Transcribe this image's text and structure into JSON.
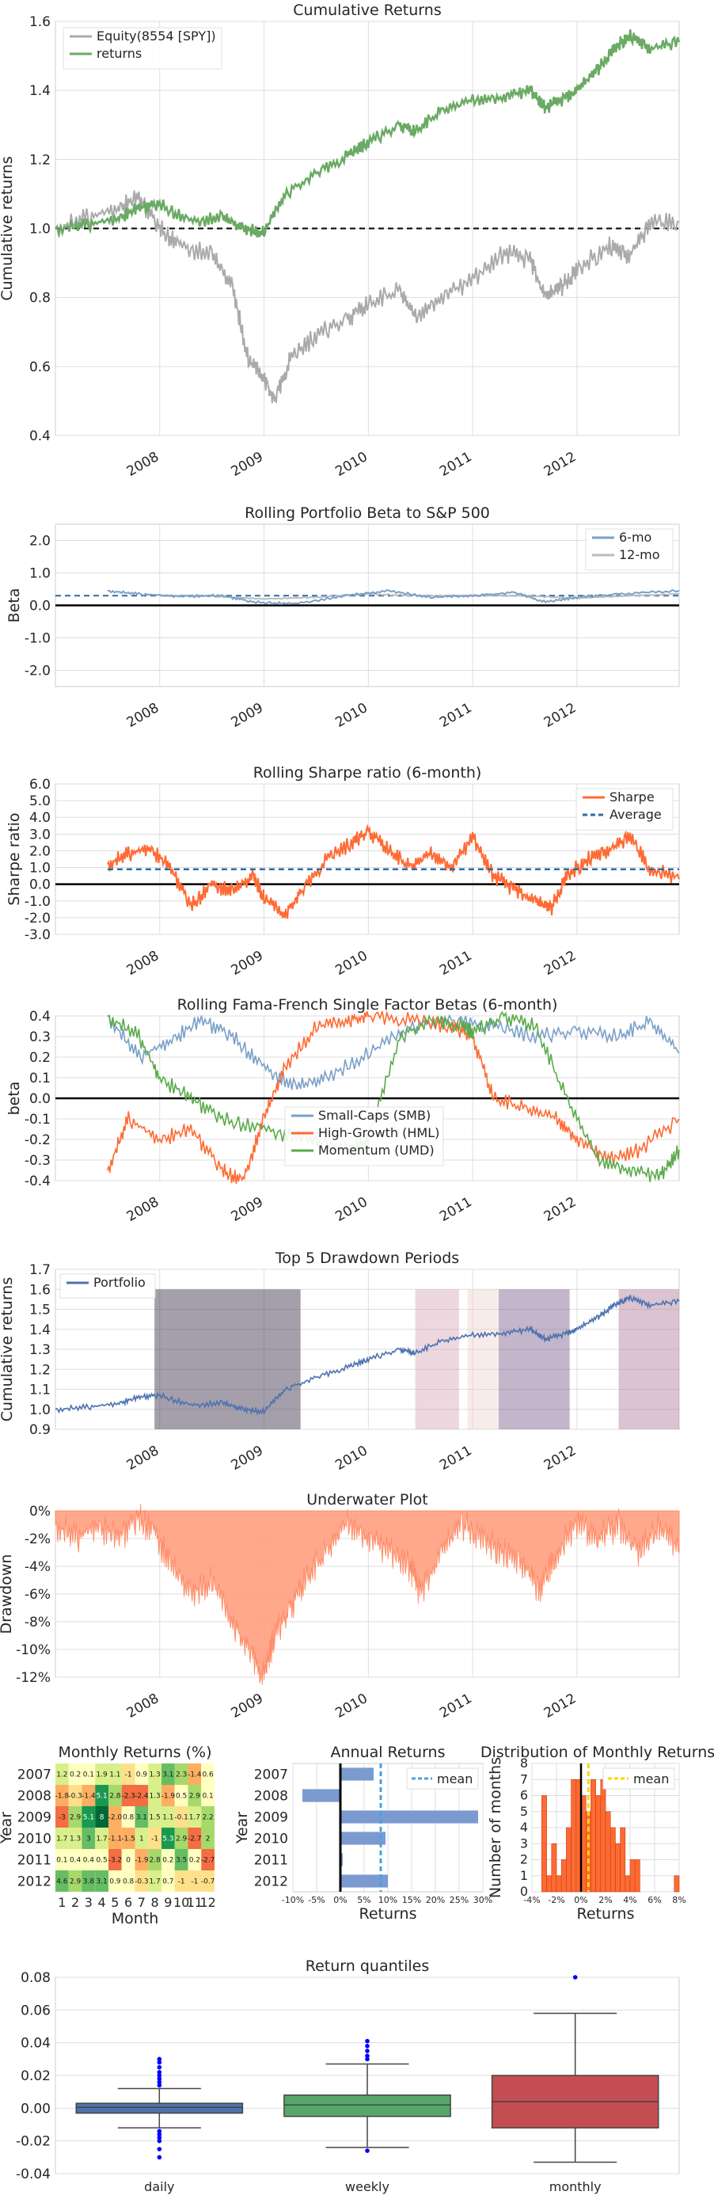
{
  "colors": {
    "equity": "#aaaaaa",
    "returns": "#6aaa64",
    "beta6": "#7aa0c8",
    "beta12": "#bbbbbb",
    "sharpe": "#ff6a33",
    "average": "#2d6ca2",
    "smb": "#7aa0c8",
    "hml": "#ff6a33",
    "umd": "#5aaa4a",
    "portfolio": "#4c72b0",
    "underwater": "#ff9f80",
    "bar": "#7b9bd0",
    "mean": "#4aa0e0",
    "hist": "#ff6a33",
    "hist_mean": "#ffd400",
    "daily": "#4c72b0",
    "weekly": "#55a868",
    "monthly": "#c44e52"
  },
  "year_ticks": [
    "2008",
    "2009",
    "2010",
    "2011",
    "2012"
  ],
  "chart_data": [
    {
      "id": "cumulative",
      "type": "line",
      "title": "Cumulative Returns",
      "ylabel": "Cumulative returns",
      "ylim": [
        0.4,
        1.6
      ],
      "xlim": [
        2007.0,
        2012.98
      ],
      "yticks": [
        "0.4",
        "0.6",
        "0.8",
        "1.0",
        "1.2",
        "1.4",
        "1.6"
      ],
      "legend": [
        "Equity(8554 [SPY])",
        "returns"
      ],
      "reference_line": 1.0,
      "series": [
        {
          "name": "Equity(8554 [SPY])",
          "x": [
            2007.0,
            2007.3,
            2007.6,
            2007.8,
            2008.0,
            2008.2,
            2008.5,
            2008.7,
            2008.85,
            2009.0,
            2009.1,
            2009.25,
            2009.5,
            2009.8,
            2010.0,
            2010.3,
            2010.45,
            2010.7,
            2011.0,
            2011.3,
            2011.55,
            2011.7,
            2011.85,
            2012.0,
            2012.3,
            2012.5,
            2012.7,
            2012.98
          ],
          "y": [
            1.0,
            1.03,
            1.06,
            1.09,
            1.0,
            0.95,
            0.92,
            0.83,
            0.62,
            0.57,
            0.5,
            0.62,
            0.69,
            0.74,
            0.78,
            0.82,
            0.74,
            0.8,
            0.85,
            0.93,
            0.91,
            0.8,
            0.83,
            0.88,
            0.95,
            0.92,
            1.01,
            1.02
          ]
        },
        {
          "name": "returns",
          "x": [
            2007.0,
            2007.3,
            2007.6,
            2007.8,
            2008.0,
            2008.3,
            2008.6,
            2008.8,
            2009.0,
            2009.2,
            2009.5,
            2009.8,
            2010.0,
            2010.3,
            2010.45,
            2010.7,
            2011.0,
            2011.3,
            2011.55,
            2011.7,
            2011.9,
            2012.0,
            2012.2,
            2012.35,
            2012.5,
            2012.7,
            2012.98
          ],
          "y": [
            1.0,
            1.01,
            1.03,
            1.06,
            1.07,
            1.02,
            1.03,
            1.0,
            0.99,
            1.1,
            1.16,
            1.21,
            1.25,
            1.3,
            1.28,
            1.34,
            1.37,
            1.38,
            1.4,
            1.35,
            1.38,
            1.4,
            1.46,
            1.52,
            1.56,
            1.52,
            1.54
          ]
        }
      ]
    },
    {
      "id": "beta",
      "type": "line",
      "title": "Rolling Portfolio Beta to S&P 500",
      "ylabel": "Beta",
      "ylim": [
        -2.5,
        2.5
      ],
      "yticks": [
        "-2.0",
        "-1.0",
        "0.0",
        "1.0",
        "2.0"
      ],
      "legend": [
        "6-mo",
        "12-mo"
      ],
      "mean_line": 0.3,
      "series": [
        {
          "name": "6-mo",
          "x": [
            2007.5,
            2007.8,
            2008.2,
            2008.6,
            2008.9,
            2009.3,
            2009.8,
            2010.2,
            2010.6,
            2011.0,
            2011.4,
            2011.7,
            2012.0,
            2012.4,
            2012.98
          ],
          "y": [
            0.45,
            0.35,
            0.28,
            0.3,
            0.1,
            0.05,
            0.3,
            0.45,
            0.25,
            0.3,
            0.4,
            0.1,
            0.25,
            0.35,
            0.45
          ]
        },
        {
          "name": "12-mo",
          "x": [
            2008.0,
            2008.5,
            2009.0,
            2009.5,
            2010.0,
            2010.5,
            2011.0,
            2011.5,
            2012.0,
            2012.5,
            2012.98
          ],
          "y": [
            0.3,
            0.28,
            0.2,
            0.25,
            0.35,
            0.3,
            0.3,
            0.3,
            0.22,
            0.3,
            0.35
          ]
        }
      ]
    },
    {
      "id": "sharpe",
      "type": "line",
      "title": "Rolling Sharpe ratio (6-month)",
      "ylabel": "Sharpe ratio",
      "ylim": [
        -3.0,
        6.0
      ],
      "yticks": [
        "-3.0",
        "-2.0",
        "-1.0",
        "0.0",
        "1.0",
        "2.0",
        "3.0",
        "4.0",
        "5.0",
        "6.0"
      ],
      "legend": [
        "Sharpe",
        "Average"
      ],
      "series": [
        {
          "name": "Sharpe",
          "x": [
            2007.5,
            2007.7,
            2007.9,
            2008.1,
            2008.3,
            2008.5,
            2008.7,
            2008.9,
            2009.0,
            2009.2,
            2009.35,
            2009.6,
            2009.85,
            2010.0,
            2010.2,
            2010.4,
            2010.6,
            2010.8,
            2011.0,
            2011.2,
            2011.4,
            2011.6,
            2011.75,
            2011.9,
            2012.1,
            2012.3,
            2012.5,
            2012.7,
            2012.98
          ],
          "y": [
            1.2,
            1.8,
            2.2,
            1.0,
            -1.3,
            0.0,
            -0.5,
            0.5,
            -0.8,
            -1.8,
            -0.5,
            1.5,
            2.5,
            3.2,
            2.0,
            1.0,
            1.8,
            1.0,
            2.8,
            0.5,
            -0.3,
            -1.0,
            -1.5,
            0.5,
            1.5,
            2.0,
            2.8,
            1.0,
            0.3
          ]
        },
        {
          "name": "Average",
          "x": [
            2007.5,
            2012.98
          ],
          "y": [
            0.9,
            0.9
          ]
        }
      ]
    },
    {
      "id": "ff_betas",
      "type": "line",
      "title": "Rolling Fama-French Single Factor Betas (6-month)",
      "ylabel": "beta",
      "ylim": [
        -0.4,
        0.4
      ],
      "yticks": [
        "-0.4",
        "-0.3",
        "-0.2",
        "-0.1",
        "0.0",
        "0.1",
        "0.2",
        "0.3",
        "0.4"
      ],
      "legend": [
        "Small-Caps (SMB)",
        "High-Growth (HML)",
        "Momentum (UMD)"
      ],
      "series": [
        {
          "name": "Small-Caps (SMB)",
          "x": [
            2007.5,
            2007.8,
            2008.1,
            2008.4,
            2008.7,
            2009.0,
            2009.3,
            2009.6,
            2010.0,
            2010.4,
            2010.8,
            2011.2,
            2011.6,
            2012.0,
            2012.4,
            2012.7,
            2012.98
          ],
          "y": [
            0.4,
            0.2,
            0.28,
            0.38,
            0.3,
            0.15,
            0.05,
            0.1,
            0.22,
            0.35,
            0.38,
            0.35,
            0.3,
            0.33,
            0.3,
            0.37,
            0.22
          ]
        },
        {
          "name": "High-Growth (HML)",
          "x": [
            2007.5,
            2007.7,
            2008.0,
            2008.3,
            2008.6,
            2008.8,
            2009.0,
            2009.2,
            2009.5,
            2009.8,
            2010.0,
            2010.4,
            2010.8,
            2011.0,
            2011.2,
            2011.5,
            2011.8,
            2012.0,
            2012.3,
            2012.6,
            2012.98
          ],
          "y": [
            -0.35,
            -0.1,
            -0.2,
            -0.15,
            -0.35,
            -0.4,
            -0.1,
            0.15,
            0.35,
            0.38,
            0.4,
            0.38,
            0.35,
            0.3,
            0.0,
            -0.05,
            -0.1,
            -0.2,
            -0.3,
            -0.25,
            -0.1
          ]
        },
        {
          "name": "Momentum (UMD)",
          "x": [
            2007.5,
            2007.8,
            2008.0,
            2008.3,
            2008.6,
            2009.0,
            2009.4,
            2009.8,
            2010.0,
            2010.3,
            2010.6,
            2010.9,
            2011.0,
            2011.3,
            2011.6,
            2011.9,
            2012.2,
            2012.5,
            2012.8,
            2012.98
          ],
          "y": [
            0.4,
            0.3,
            0.1,
            0.0,
            -0.1,
            -0.15,
            -0.2,
            -0.25,
            -0.2,
            0.3,
            0.38,
            0.35,
            0.32,
            0.4,
            0.35,
            0.0,
            -0.3,
            -0.35,
            -0.38,
            -0.25
          ]
        }
      ]
    },
    {
      "id": "drawdown_periods",
      "type": "line",
      "title": "Top 5 Drawdown Periods",
      "ylabel": "Cumulative returns",
      "ylim": [
        0.9,
        1.7
      ],
      "yticks": [
        "0.9",
        "1.0",
        "1.1",
        "1.2",
        "1.3",
        "1.4",
        "1.5",
        "1.6",
        "1.7"
      ],
      "legend": [
        "Portfolio"
      ],
      "periods": [
        {
          "start": 2007.95,
          "end": 2009.35,
          "color": "#4a3f55",
          "opacity": 0.5
        },
        {
          "start": 2010.45,
          "end": 2010.87,
          "color": "#c890a0",
          "opacity": 0.35
        },
        {
          "start": 2010.95,
          "end": 2011.25,
          "color": "#e8c8c0",
          "opacity": 0.35
        },
        {
          "start": 2011.25,
          "end": 2011.93,
          "color": "#7a5a8a",
          "opacity": 0.45
        },
        {
          "start": 2012.4,
          "end": 2012.98,
          "color": "#b07a9a",
          "opacity": 0.45
        }
      ],
      "series": [
        {
          "name": "Portfolio",
          "x": [
            2007.0,
            2007.3,
            2007.6,
            2007.8,
            2008.0,
            2008.3,
            2008.6,
            2008.8,
            2009.0,
            2009.2,
            2009.5,
            2009.8,
            2010.0,
            2010.3,
            2010.45,
            2010.7,
            2011.0,
            2011.3,
            2011.55,
            2011.7,
            2011.9,
            2012.0,
            2012.2,
            2012.35,
            2012.5,
            2012.7,
            2012.98
          ],
          "y": [
            1.0,
            1.01,
            1.03,
            1.06,
            1.07,
            1.02,
            1.03,
            1.0,
            0.99,
            1.1,
            1.16,
            1.21,
            1.25,
            1.3,
            1.28,
            1.34,
            1.37,
            1.38,
            1.4,
            1.35,
            1.38,
            1.4,
            1.46,
            1.52,
            1.56,
            1.52,
            1.54
          ]
        }
      ]
    },
    {
      "id": "underwater",
      "type": "area",
      "title": "Underwater Plot",
      "ylabel": "Drawdown",
      "ylim": [
        -12,
        0
      ],
      "yticks": [
        "0%",
        "-2%",
        "-4%",
        "-6%",
        "-8%",
        "-10%",
        "-12%"
      ],
      "series": [
        {
          "name": "Drawdown",
          "x": [
            2007.0,
            2007.2,
            2007.4,
            2007.6,
            2007.8,
            2007.95,
            2008.1,
            2008.3,
            2008.5,
            2008.7,
            2008.85,
            2009.0,
            2009.1,
            2009.25,
            2009.4,
            2009.6,
            2009.8,
            2010.0,
            2010.2,
            2010.4,
            2010.5,
            2010.7,
            2010.9,
            2011.1,
            2011.3,
            2011.5,
            2011.65,
            2011.8,
            2012.0,
            2012.2,
            2012.4,
            2012.6,
            2012.8,
            2012.98
          ],
          "y": [
            -1.0,
            -2.0,
            -1.0,
            -2.0,
            -0.5,
            -1.5,
            -4.0,
            -6.0,
            -5.0,
            -8.0,
            -10.0,
            -12.0,
            -9.0,
            -7.0,
            -5.0,
            -3.0,
            -1.0,
            -2.0,
            -3.0,
            -4.0,
            -6.0,
            -3.0,
            -1.0,
            -2.0,
            -3.0,
            -4.0,
            -6.0,
            -3.0,
            -1.0,
            -2.0,
            -1.0,
            -3.0,
            -1.0,
            -3.0
          ]
        }
      ]
    },
    {
      "id": "monthly_heatmap",
      "type": "heatmap",
      "title": "Monthly Returns (%)",
      "xlabel": "Month",
      "ylabel": "Year",
      "rows": [
        "2007",
        "2008",
        "2009",
        "2010",
        "2011",
        "2012"
      ],
      "cols": [
        "1",
        "2",
        "3",
        "4",
        "5",
        "6",
        "7",
        "8",
        "9",
        "10",
        "11",
        "12"
      ],
      "values": [
        [
          1.2,
          0.2,
          0.1,
          1.9,
          1.1,
          -1,
          0.9,
          1.3,
          3.1,
          2.3,
          -1.4,
          0.6
        ],
        [
          -1.8,
          -0.3,
          -1.4,
          5.1,
          2.8,
          -2.3,
          -2.4,
          1.3,
          -1.9,
          0.5,
          2.9,
          0.1
        ],
        [
          -3,
          2.9,
          5.1,
          8,
          -2.0,
          0.8,
          3.1,
          1.5,
          1.1,
          -0.1,
          1.7,
          2.2
        ],
        [
          1.7,
          1.3,
          3,
          1.7,
          -1.1,
          -1.5,
          1,
          -1,
          5.3,
          2.9,
          -2.7,
          2
        ],
        [
          0.1,
          0.4,
          0.4,
          0.5,
          -3.2,
          0,
          -1.9,
          2.8,
          0.2,
          3.5,
          0.2,
          -2.7
        ],
        [
          4.6,
          2.9,
          3.8,
          3.1,
          0.9,
          0.8,
          -0.3,
          1.7,
          0.7,
          -1,
          -1,
          -0.7
        ]
      ],
      "labels": [
        [
          "1.2",
          "0.2",
          "0.1",
          "1.9",
          "1.1",
          "-1",
          "0.9",
          "1.3",
          "3.1",
          "2.3",
          "-1.4",
          "0.6"
        ],
        [
          "-1.8",
          "-0.3",
          "-1.4",
          "5.1",
          "2.8",
          "-2.3",
          "-2.4",
          "1.3",
          "-1.9",
          "0.5",
          "2.9",
          "0.1"
        ],
        [
          "-3",
          "2.9",
          "5.1",
          "8",
          "-2.0",
          "0.8",
          "3.1",
          "1.5",
          "1.1",
          "-0.1",
          "1.7",
          "2.2"
        ],
        [
          "1.7",
          "1.3",
          "3",
          "1.7",
          "-1.1",
          "-1.5",
          "1",
          "-1",
          "5.3",
          "2.9",
          "-2.7",
          "2"
        ],
        [
          "0.1",
          "0.4",
          "0.4",
          "0.5",
          "-3.2",
          "0",
          "-1.9",
          "2.8",
          "0.2",
          "3.5",
          "0.2",
          "-2.7"
        ],
        [
          "4.6",
          "2.9",
          "3.8",
          "3.1",
          "0.9",
          "0.8",
          "-0.3",
          "1.7",
          "0.7",
          "-1",
          "-1",
          "-0.7"
        ]
      ]
    },
    {
      "id": "annual_returns",
      "type": "bar",
      "orientation": "horizontal",
      "title": "Annual Returns",
      "xlabel": "Returns",
      "ylabel": "Year",
      "categories": [
        "2007",
        "2008",
        "2009",
        "2010",
        "2011",
        "2012"
      ],
      "values": [
        7,
        -8,
        29,
        9.5,
        0.5,
        10
      ],
      "mean": 8.5,
      "xlim": [
        -10,
        30
      ],
      "xticks": [
        "-10%",
        "-5%",
        "0%",
        "5%",
        "10%",
        "15%",
        "20%",
        "25%",
        "30%"
      ],
      "legend": [
        "mean"
      ]
    },
    {
      "id": "monthly_distribution",
      "type": "bar",
      "title": "Distribution of Monthly Returns",
      "xlabel": "Returns",
      "ylabel": "Number of months",
      "xlim": [
        -4,
        8
      ],
      "ylim": [
        0,
        8
      ],
      "xticks": [
        "-4%",
        "-2%",
        "0%",
        "2%",
        "4%",
        "6%",
        "8%"
      ],
      "yticks": [
        "0",
        "1",
        "2",
        "3",
        "4",
        "5",
        "6",
        "7",
        "8"
      ],
      "bins_start": -3.2,
      "bin_width": 0.4,
      "counts": [
        6,
        1,
        3,
        1,
        2,
        4,
        7,
        7,
        6,
        5,
        7,
        6,
        7,
        5,
        4,
        3,
        4,
        1,
        2,
        2,
        0,
        0,
        0,
        0,
        0,
        0,
        0,
        1
      ],
      "mean": 0.6,
      "legend": [
        "mean"
      ]
    },
    {
      "id": "return_quantiles",
      "type": "box",
      "title": "Return quantiles",
      "ylim": [
        -0.04,
        0.08
      ],
      "yticks": [
        "-0.04",
        "-0.02",
        "0.00",
        "0.02",
        "0.04",
        "0.06",
        "0.08"
      ],
      "categories": [
        "daily",
        "weekly",
        "monthly"
      ],
      "boxes": [
        {
          "q1": -0.003,
          "median": 0.0005,
          "q3": 0.003,
          "whisker_low": -0.012,
          "whisker_high": 0.012,
          "outliers": [
            0.03,
            0.028,
            0.025,
            0.022,
            0.02,
            0.018,
            0.016,
            0.014,
            -0.014,
            -0.016,
            -0.018,
            -0.02,
            -0.025,
            -0.03
          ]
        },
        {
          "q1": -0.005,
          "median": 0.002,
          "q3": 0.008,
          "whisker_low": -0.024,
          "whisker_high": 0.027,
          "outliers": [
            0.041,
            0.038,
            0.035,
            0.032,
            0.03,
            -0.026
          ]
        },
        {
          "q1": -0.012,
          "median": 0.004,
          "q3": 0.02,
          "whisker_low": -0.033,
          "whisker_high": 0.058,
          "outliers": [
            0.08
          ]
        }
      ]
    }
  ]
}
